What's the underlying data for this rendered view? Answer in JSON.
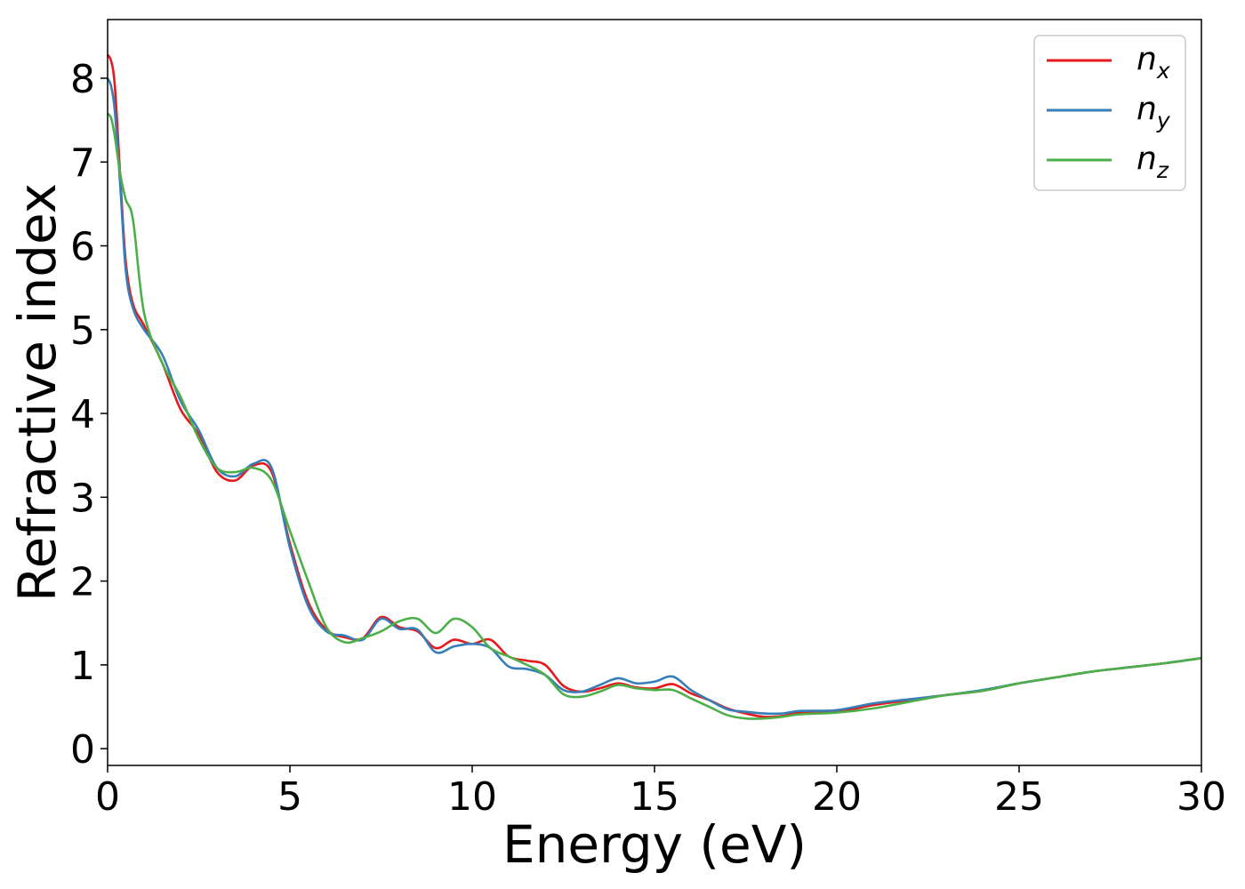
{
  "chart_data": {
    "type": "line",
    "title": "",
    "xlabel": "Energy (eV)",
    "ylabel": "Refractive index",
    "xlim": [
      0,
      30
    ],
    "ylim": [
      -0.2,
      8.7
    ],
    "xticks": [
      0,
      5,
      10,
      15,
      20,
      25,
      30
    ],
    "yticks": [
      0,
      1,
      2,
      3,
      4,
      5,
      6,
      7,
      8
    ],
    "xtick_labels": [
      "0",
      "5",
      "10",
      "15",
      "20",
      "25",
      "30"
    ],
    "ytick_labels": [
      "0",
      "1",
      "2",
      "3",
      "4",
      "5",
      "6",
      "7",
      "8"
    ],
    "grid": false,
    "legend_position": "top-right",
    "series": [
      {
        "name": "n_x",
        "legend_base": "n",
        "legend_sub": "x",
        "color": "#e41a1c",
        "x": [
          0,
          0.1,
          0.2,
          0.35,
          0.5,
          0.7,
          1.0,
          1.5,
          2.0,
          2.5,
          3.0,
          3.5,
          4.0,
          4.5,
          5.0,
          5.5,
          6.0,
          6.5,
          7.0,
          7.5,
          8.0,
          8.5,
          9.0,
          9.5,
          10.0,
          10.5,
          11.0,
          11.5,
          12.0,
          12.5,
          13.0,
          13.5,
          14.0,
          14.5,
          15.0,
          15.5,
          16.0,
          16.5,
          17.0,
          17.5,
          18.0,
          18.5,
          19.0,
          20.0,
          21.0,
          22.0,
          23.0,
          24.0,
          25.0,
          26.0,
          27.0,
          28.0,
          29.0,
          30.0
        ],
        "y": [
          8.28,
          8.2,
          7.9,
          6.8,
          5.8,
          5.3,
          5.05,
          4.6,
          4.05,
          3.75,
          3.3,
          3.2,
          3.38,
          3.3,
          2.45,
          1.75,
          1.42,
          1.33,
          1.32,
          1.57,
          1.45,
          1.4,
          1.2,
          1.3,
          1.25,
          1.3,
          1.1,
          1.05,
          1.0,
          0.75,
          0.68,
          0.72,
          0.78,
          0.73,
          0.72,
          0.77,
          0.66,
          0.58,
          0.48,
          0.42,
          0.38,
          0.39,
          0.43,
          0.44,
          0.52,
          0.58,
          0.64,
          0.69,
          0.78,
          0.85,
          0.92,
          0.97,
          1.02,
          1.08
        ]
      },
      {
        "name": "n_y",
        "legend_base": "n",
        "legend_sub": "y",
        "color": "#377eb8",
        "x": [
          0,
          0.1,
          0.2,
          0.35,
          0.5,
          0.7,
          1.0,
          1.5,
          2.0,
          2.5,
          3.0,
          3.5,
          4.0,
          4.5,
          5.0,
          5.5,
          6.0,
          6.5,
          7.0,
          7.5,
          8.0,
          8.5,
          9.0,
          9.5,
          10.0,
          10.5,
          11.0,
          11.5,
          12.0,
          12.5,
          13.0,
          13.5,
          14.0,
          14.5,
          15.0,
          15.5,
          16.0,
          16.5,
          17.0,
          17.5,
          18.0,
          18.5,
          19.0,
          20.0,
          21.0,
          22.0,
          23.0,
          24.0,
          25.0,
          26.0,
          27.0,
          28.0,
          29.0,
          30.0
        ],
        "y": [
          8.0,
          7.9,
          7.6,
          6.7,
          5.7,
          5.25,
          5.0,
          4.7,
          4.15,
          3.8,
          3.35,
          3.25,
          3.4,
          3.35,
          2.4,
          1.7,
          1.4,
          1.35,
          1.3,
          1.55,
          1.43,
          1.42,
          1.15,
          1.22,
          1.25,
          1.2,
          0.98,
          0.95,
          0.88,
          0.7,
          0.68,
          0.76,
          0.84,
          0.78,
          0.8,
          0.86,
          0.7,
          0.58,
          0.47,
          0.44,
          0.42,
          0.42,
          0.45,
          0.46,
          0.54,
          0.59,
          0.64,
          0.7,
          0.78,
          0.85,
          0.92,
          0.97,
          1.02,
          1.08
        ]
      },
      {
        "name": "n_z",
        "legend_base": "n",
        "legend_sub": "z",
        "color": "#4daf4a",
        "x": [
          0,
          0.1,
          0.2,
          0.35,
          0.5,
          0.7,
          1.0,
          1.5,
          2.0,
          2.5,
          3.0,
          3.5,
          4.0,
          4.5,
          5.0,
          5.5,
          6.0,
          6.5,
          7.0,
          7.5,
          8.0,
          8.5,
          9.0,
          9.5,
          10.0,
          10.5,
          11.0,
          11.5,
          12.0,
          12.5,
          13.0,
          13.5,
          14.0,
          14.5,
          15.0,
          15.5,
          16.0,
          16.5,
          17.0,
          17.5,
          18.0,
          18.5,
          19.0,
          20.0,
          21.0,
          22.0,
          23.0,
          24.0,
          25.0,
          26.0,
          27.0,
          28.0,
          29.0,
          30.0
        ],
        "y": [
          7.58,
          7.52,
          7.3,
          6.85,
          6.55,
          6.3,
          5.2,
          4.6,
          4.2,
          3.7,
          3.35,
          3.3,
          3.35,
          3.2,
          2.6,
          2.0,
          1.45,
          1.27,
          1.32,
          1.4,
          1.52,
          1.55,
          1.38,
          1.55,
          1.45,
          1.2,
          1.1,
          1.0,
          0.88,
          0.65,
          0.62,
          0.68,
          0.76,
          0.72,
          0.7,
          0.7,
          0.6,
          0.5,
          0.4,
          0.36,
          0.36,
          0.38,
          0.41,
          0.43,
          0.48,
          0.56,
          0.64,
          0.69,
          0.78,
          0.85,
          0.92,
          0.97,
          1.02,
          1.08
        ]
      }
    ]
  }
}
